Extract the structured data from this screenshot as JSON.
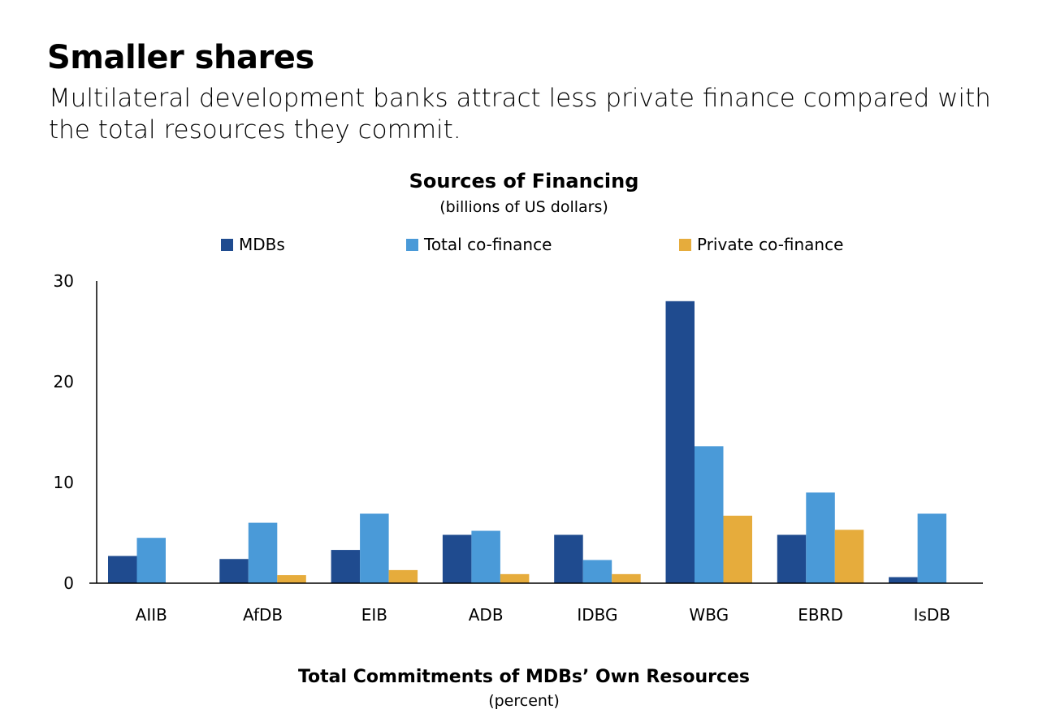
{
  "header": {
    "title": "Smaller shares",
    "subtitle": "Multilateral development banks attract less private finance compared with the total resources they commit."
  },
  "chart_data": {
    "type": "bar",
    "title": "Sources of Financing",
    "subtitle": "(billions of US dollars)",
    "xlabel": "Total Commitments of MDBs’ Own Resources",
    "xlabel_sub": "(percent)",
    "ylabel": "",
    "ylim": [
      0,
      30
    ],
    "yticks": [
      0,
      10,
      20,
      30
    ],
    "grid": false,
    "legend_position": "top",
    "categories": [
      "AIIB",
      "AfDB",
      "EIB",
      "ADB",
      "IDBG",
      "WBG",
      "EBRD",
      "IsDB"
    ],
    "series": [
      {
        "name": "MDBs",
        "color": "#1f4b8f",
        "values": [
          2.7,
          2.4,
          3.3,
          4.8,
          4.8,
          28.0,
          4.8,
          0.6
        ]
      },
      {
        "name": "Total co-finance",
        "color": "#4a9ad8",
        "values": [
          4.5,
          6.0,
          6.9,
          5.2,
          2.3,
          13.6,
          9.0,
          6.9
        ]
      },
      {
        "name": "Private co-finance",
        "color": "#e6ac3c",
        "values": [
          0,
          0.8,
          1.3,
          0.9,
          0.9,
          6.7,
          5.3,
          0
        ]
      }
    ]
  }
}
